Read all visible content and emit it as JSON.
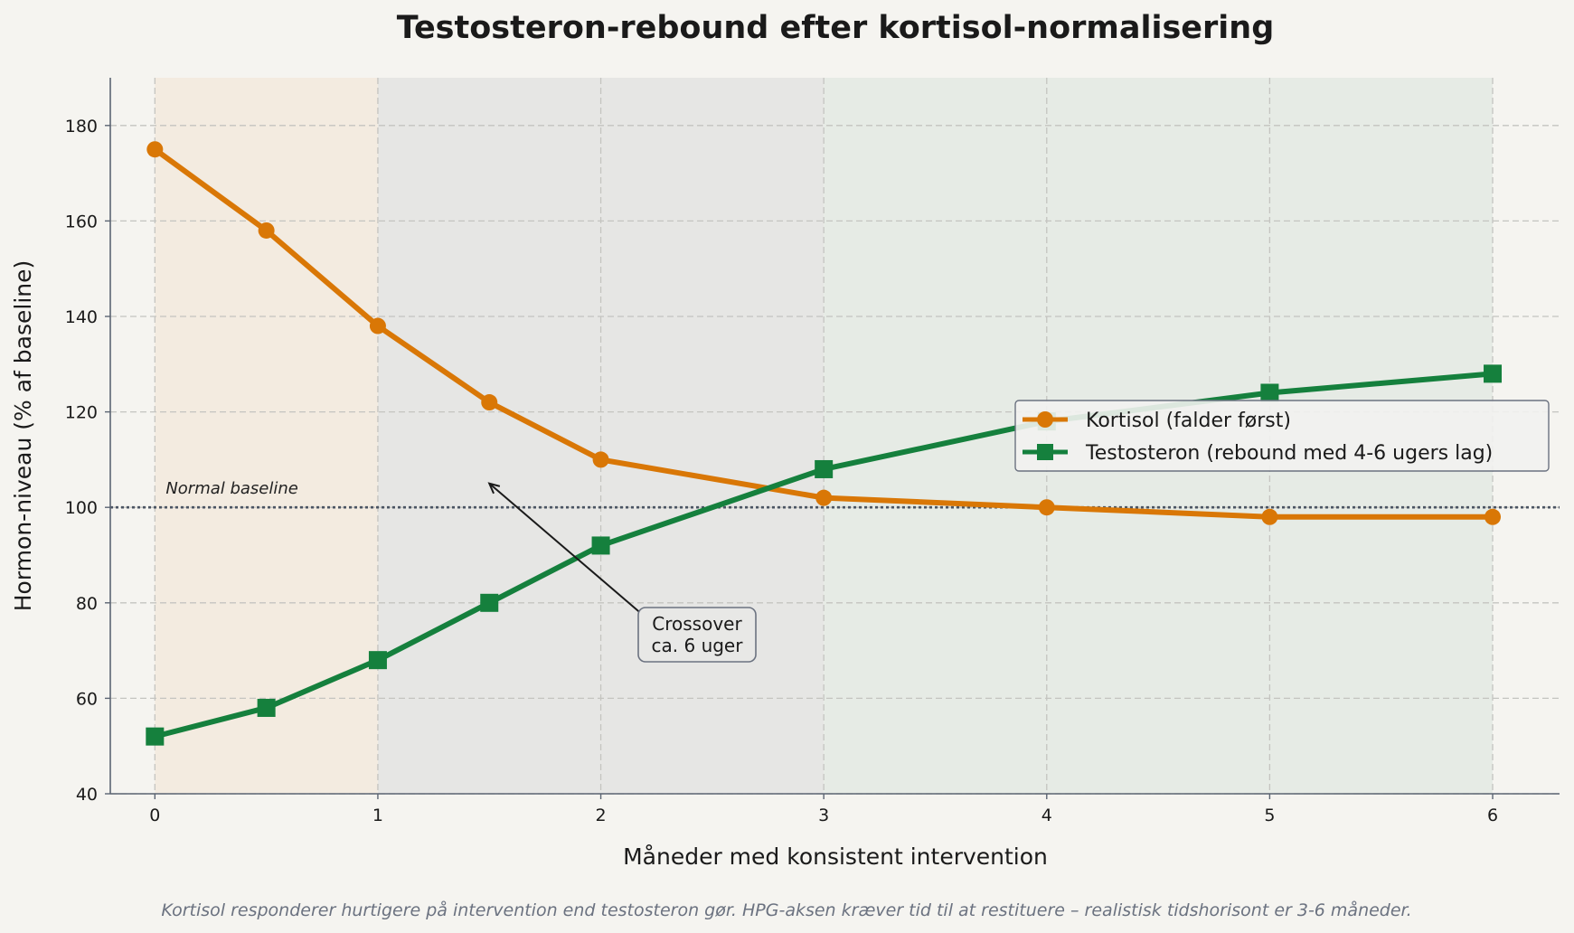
{
  "chart_data": {
    "type": "line",
    "title": "Testosteron-rebound efter kortisol-normalisering",
    "xlabel": "Måneder med konsistent intervention",
    "ylabel": "Hormon-niveau (% af baseline)",
    "footnote": "Kortisol responderer hurtigere på intervention end testosteron gør. HPG-aksen kræver tid til at restituere – realistisk tidshorisont er 3-6 måneder.",
    "xlim": [
      -0.2,
      6.3
    ],
    "ylim": [
      40,
      190
    ],
    "xticks": [
      0,
      1,
      2,
      3,
      4,
      5,
      6
    ],
    "yticks": [
      40,
      60,
      80,
      100,
      120,
      140,
      160,
      180
    ],
    "grid": true,
    "legend_position": "center-right",
    "phases": [
      {
        "from": 0,
        "to": 1,
        "color": "#f3ebe0"
      },
      {
        "from": 1,
        "to": 3,
        "color": "#e6e6e4"
      },
      {
        "from": 3,
        "to": 6,
        "color": "#e6ebe5"
      }
    ],
    "reference_line": {
      "y": 100,
      "label": "Normal baseline"
    },
    "annotation": {
      "text_lines": [
        "Crossover",
        "ca. 6 uger"
      ],
      "point": [
        1.5,
        105
      ],
      "text_at": [
        2.42,
        75
      ]
    },
    "series": [
      {
        "name": "Kortisol (falder først)",
        "color": "#d97706",
        "marker": "circle",
        "x": [
          0,
          0.5,
          1,
          1.5,
          2,
          3,
          4,
          5,
          6
        ],
        "y": [
          175,
          158,
          138,
          122,
          110,
          102,
          100,
          98,
          98
        ]
      },
      {
        "name": "Testosteron (rebound med 4-6 ugers lag)",
        "color": "#15803d",
        "marker": "square",
        "x": [
          0,
          0.5,
          1,
          1.5,
          2,
          3,
          4,
          5,
          6
        ],
        "y": [
          52,
          58,
          68,
          80,
          92,
          108,
          118,
          124,
          128
        ]
      }
    ]
  }
}
